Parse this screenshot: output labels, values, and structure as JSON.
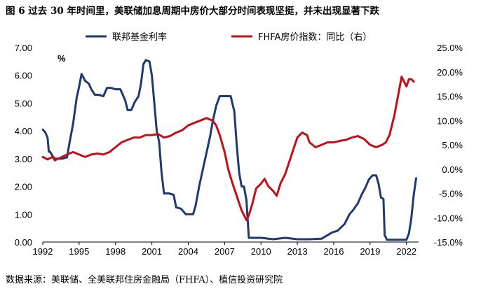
{
  "title": "图 6 过去 30 年时间里，美联储加息周期中房价大部分时间表现坚挺，并未出现显著下跌",
  "source": "数据来源：美联储、全美联邦住房金融局（FHFA）、植信投资研究院",
  "chart_data": {
    "type": "line",
    "title": "图 6 过去 30 年时间里，美联储加息周期中房价大部分时间表现坚挺，并未出现显著下跌",
    "xlabel": "",
    "ylabel": "%",
    "y_unit_label": "%",
    "xlim": [
      1992,
      2023
    ],
    "x_ticks": [
      "1992",
      "1995",
      "1998",
      "2001",
      "2004",
      "2007",
      "2010",
      "2013",
      "2016",
      "2019",
      "2022"
    ],
    "ylim_left": [
      0,
      7
    ],
    "y_ticks_left": [
      "0.00",
      "1.00",
      "2.00",
      "3.00",
      "4.00",
      "5.00",
      "6.00",
      "7.00"
    ],
    "ylim_right": [
      -15,
      25
    ],
    "y_ticks_right": [
      "-15.0%",
      "-10.0%",
      "-5.0%",
      "0.0%",
      "5.0%",
      "10.0%",
      "15.0%",
      "20.0%",
      "25.0%"
    ],
    "grid": false,
    "legend_position": "top",
    "series": [
      {
        "name": "联邦基金利率",
        "axis": "left",
        "color": "#1f3a6e",
        "x": [
          1992.0,
          1992.2,
          1992.4,
          1992.5,
          1992.6,
          1992.8,
          1993.0,
          1993.3,
          1993.6,
          1994.0,
          1994.2,
          1994.5,
          1994.8,
          1995.0,
          1995.2,
          1995.5,
          1995.8,
          1996.0,
          1996.3,
          1996.6,
          1997.0,
          1997.3,
          1997.6,
          1998.0,
          1998.4,
          1998.8,
          1999.0,
          1999.3,
          1999.6,
          1999.9,
          2000.1,
          2000.3,
          2000.5,
          2000.8,
          2001.0,
          2001.2,
          2001.4,
          2001.6,
          2001.8,
          2002.0,
          2002.4,
          2002.8,
          2003.0,
          2003.4,
          2003.8,
          2004.0,
          2004.4,
          2004.6,
          2004.9,
          2005.2,
          2005.5,
          2005.8,
          2006.0,
          2006.3,
          2006.6,
          2007.0,
          2007.5,
          2007.8,
          2008.0,
          2008.2,
          2008.4,
          2008.6,
          2008.8,
          2009.0,
          2010.0,
          2011.0,
          2012.0,
          2013.0,
          2014.0,
          2015.0,
          2015.9,
          2016.3,
          2016.9,
          2017.3,
          2017.6,
          2018.0,
          2018.3,
          2018.6,
          2018.9,
          2019.2,
          2019.5,
          2019.7,
          2019.9,
          2020.1,
          2020.2,
          2020.4,
          2021.0,
          2021.5,
          2022.0,
          2022.2,
          2022.4,
          2022.6,
          2022.8
        ],
        "values": [
          4.05,
          3.95,
          3.75,
          3.25,
          3.25,
          3.1,
          3.0,
          3.0,
          3.0,
          3.05,
          3.55,
          4.25,
          5.2,
          5.6,
          6.05,
          5.8,
          5.7,
          5.5,
          5.3,
          5.3,
          5.25,
          5.55,
          5.55,
          5.5,
          5.5,
          5.1,
          4.75,
          4.75,
          5.05,
          5.25,
          5.7,
          6.4,
          6.55,
          6.5,
          6.0,
          5.0,
          4.0,
          3.6,
          2.5,
          1.75,
          1.75,
          1.7,
          1.25,
          1.2,
          1.0,
          1.0,
          1.0,
          1.3,
          2.0,
          2.6,
          3.2,
          3.8,
          4.3,
          4.9,
          5.25,
          5.25,
          5.25,
          4.7,
          3.5,
          2.5,
          2.0,
          2.0,
          1.5,
          0.15,
          0.15,
          0.1,
          0.15,
          0.1,
          0.1,
          0.12,
          0.35,
          0.4,
          0.65,
          1.0,
          1.15,
          1.4,
          1.7,
          1.95,
          2.25,
          2.4,
          2.4,
          2.1,
          1.6,
          1.55,
          0.25,
          0.08,
          0.08,
          0.08,
          0.08,
          0.3,
          0.85,
          1.7,
          2.3
        ]
      },
      {
        "name": "FHFA房价指数：同比（右）",
        "axis": "right",
        "color": "#c0101a",
        "x": [
          1992.0,
          1992.4,
          1992.8,
          1993.0,
          1993.3,
          1993.6,
          1994.0,
          1994.5,
          1995.0,
          1995.5,
          1996.0,
          1996.5,
          1997.0,
          1997.5,
          1998.0,
          1998.5,
          1999.0,
          1999.5,
          2000.0,
          2000.5,
          2001.0,
          2001.5,
          2002.0,
          2002.5,
          2003.0,
          2003.5,
          2004.0,
          2004.5,
          2005.0,
          2005.5,
          2006.0,
          2006.3,
          2006.6,
          2007.0,
          2007.3,
          2007.6,
          2008.0,
          2008.4,
          2008.8,
          2009.0,
          2009.3,
          2009.6,
          2010.0,
          2010.3,
          2010.6,
          2011.0,
          2011.3,
          2011.6,
          2012.0,
          2012.4,
          2012.8,
          2013.0,
          2013.4,
          2013.8,
          2014.0,
          2014.5,
          2015.0,
          2015.5,
          2016.0,
          2016.5,
          2017.0,
          2017.5,
          2018.0,
          2018.5,
          2019.0,
          2019.5,
          2020.0,
          2020.3,
          2020.6,
          2021.0,
          2021.3,
          2021.6,
          2022.0,
          2022.2,
          2022.4,
          2022.6
        ],
        "values": [
          2.5,
          2.0,
          2.5,
          1.8,
          2.2,
          2.5,
          3.0,
          3.5,
          3.0,
          2.5,
          3.0,
          3.2,
          3.0,
          3.5,
          4.5,
          5.5,
          6.0,
          6.5,
          6.5,
          7.0,
          7.0,
          7.2,
          6.5,
          6.8,
          7.5,
          8.0,
          9.0,
          9.5,
          10.0,
          10.5,
          10.0,
          9.0,
          7.0,
          3.5,
          0.0,
          -2.5,
          -5.5,
          -8.5,
          -10.5,
          -9.5,
          -7.0,
          -4.0,
          -3.0,
          -2.0,
          -3.5,
          -4.5,
          -5.5,
          -3.0,
          -1.0,
          2.0,
          5.0,
          6.5,
          7.5,
          7.0,
          5.5,
          4.5,
          5.0,
          5.5,
          5.5,
          5.8,
          6.0,
          6.5,
          6.8,
          6.2,
          5.0,
          4.5,
          5.0,
          5.5,
          7.0,
          11.0,
          15.0,
          19.0,
          17.0,
          18.5,
          18.5,
          18.0
        ]
      }
    ]
  }
}
